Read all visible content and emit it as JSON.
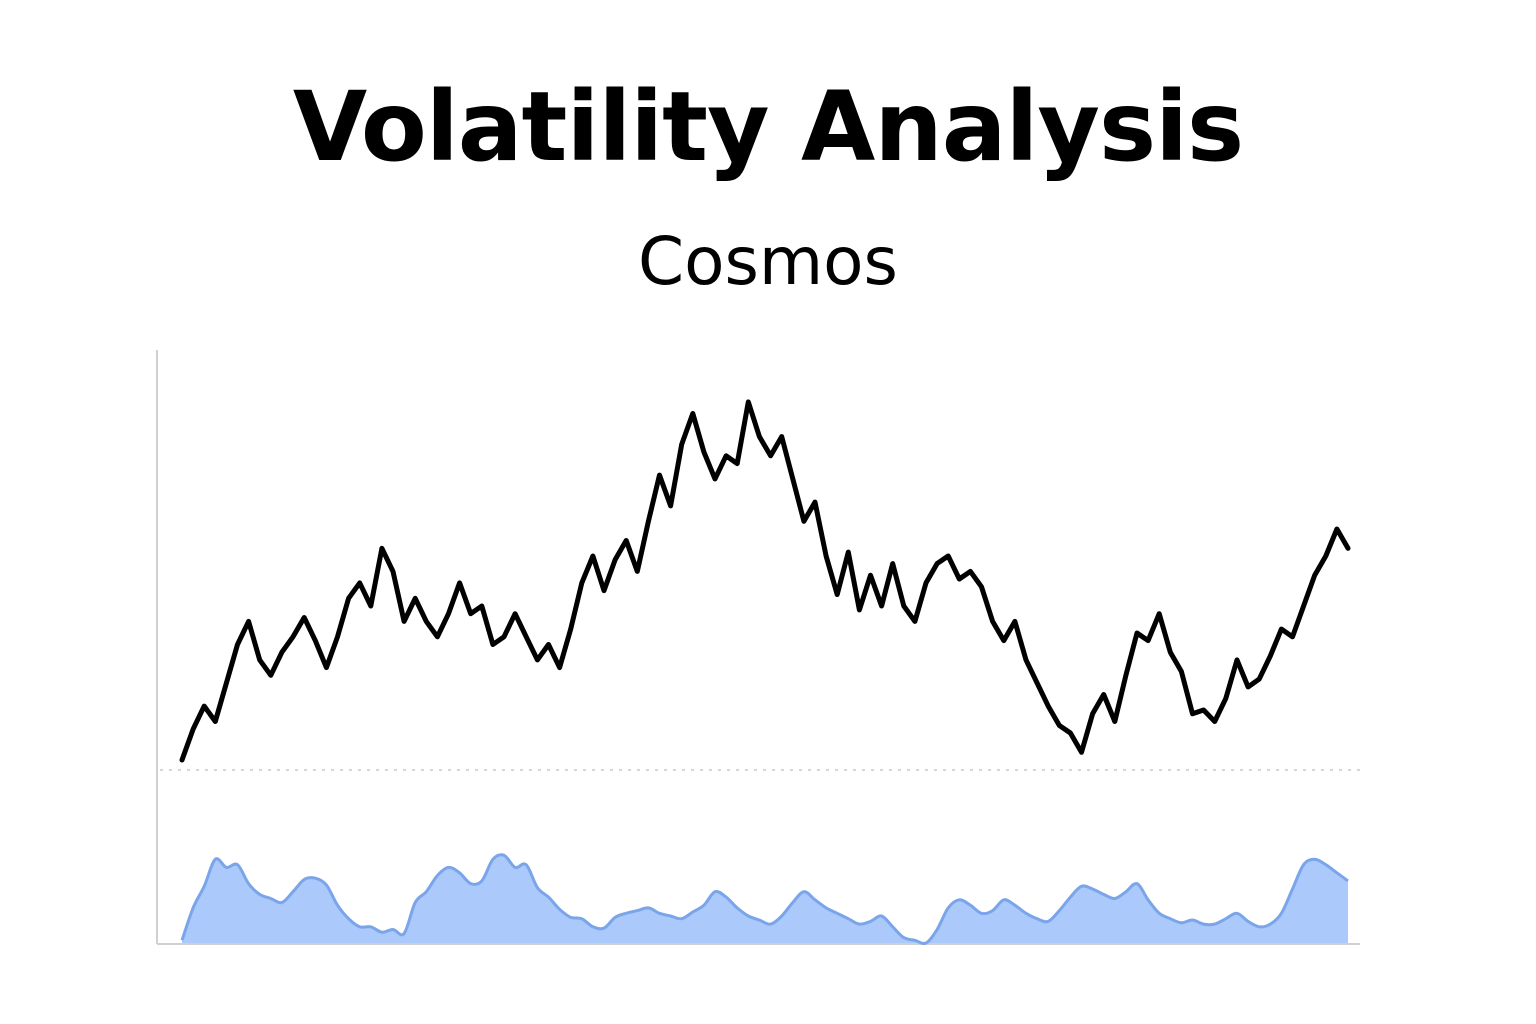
{
  "chart_data": {
    "type": "line",
    "title": "Volatility Analysis",
    "subtitle": "Cosmos",
    "xlabel": "",
    "ylabel": "",
    "grid": false,
    "legend": "none",
    "colors": {
      "price_line": "#000000",
      "volatility_fill": "#abc9fa",
      "volatility_stroke": "#7aa5ea",
      "axis": "#d0d0d0",
      "divider": "#d6d6d6"
    },
    "price_ylim": [
      0,
      100
    ],
    "volatility_ylim": [
      0,
      100
    ],
    "price_series": {
      "values": [
        0.0,
        8.0,
        14.0,
        10.0,
        20.0,
        30.0,
        36.0,
        26.0,
        22.0,
        28.0,
        32.0,
        37.0,
        31.0,
        24.0,
        32.0,
        42.0,
        46.0,
        40.0,
        55.0,
        49.0,
        36.0,
        42.0,
        36.0,
        32.0,
        38.0,
        46.0,
        38.0,
        40.0,
        30.0,
        32.0,
        38.0,
        32.0,
        26.0,
        30.0,
        24.0,
        34.0,
        46.0,
        53.0,
        44.0,
        52.0,
        57.0,
        49.0,
        62.0,
        74.0,
        66.0,
        82.0,
        90.0,
        80.0,
        73.0,
        79.0,
        77.0,
        93.0,
        84.0,
        79.0,
        84.0,
        73.0,
        62.0,
        67.0,
        53.0,
        43.0,
        54.0,
        39.0,
        48.0,
        40.0,
        51.0,
        40.0,
        36.0,
        46.0,
        51.0,
        53.0,
        47.0,
        49.0,
        45.0,
        36.0,
        31.0,
        36.0,
        26.0,
        20.0,
        14.0,
        9.0,
        7.0,
        2.0,
        12.0,
        17.0,
        10.0,
        22.0,
        33.0,
        31.0,
        38.0,
        28.0,
        23.0,
        12.0,
        13.0,
        10.0,
        16.0,
        26.0,
        19.0,
        21.0,
        27.0,
        34.0,
        32.0,
        40.0,
        48.0,
        53.0,
        60.0,
        55.0
      ]
    },
    "volatility_series": {
      "values": [
        2.0,
        26.0,
        42.0,
        62.0,
        56.0,
        58.0,
        44.0,
        36.0,
        33.0,
        30.0,
        38.0,
        47.0,
        48.0,
        43.0,
        28.0,
        18.0,
        12.0,
        12.0,
        8.0,
        10.0,
        7.0,
        30.0,
        38.0,
        50.0,
        56.0,
        52.0,
        44.0,
        46.0,
        62.0,
        65.0,
        56.0,
        58.0,
        41.0,
        34.0,
        25.0,
        19.0,
        18.0,
        12.0,
        11.0,
        19.0,
        22.0,
        24.0,
        26.0,
        22.0,
        20.0,
        18.0,
        23.0,
        28.0,
        38.0,
        34.0,
        26.0,
        20.0,
        17.0,
        14.0,
        20.0,
        30.0,
        38.0,
        32.0,
        26.0,
        22.0,
        18.0,
        14.0,
        16.0,
        20.0,
        12.0,
        4.0,
        2.0,
        0.0,
        10.0,
        26.0,
        32.0,
        28.0,
        22.0,
        24.0,
        32.0,
        28.0,
        22.0,
        18.0,
        16.0,
        24.0,
        34.0,
        42.0,
        40.0,
        36.0,
        33.0,
        38.0,
        44.0,
        32.0,
        22.0,
        18.0,
        15.0,
        17.0,
        14.0,
        14.0,
        18.0,
        22.0,
        16.0,
        12.0,
        14.0,
        22.0,
        40.0,
        58.0,
        62.0,
        58.0,
        52.0,
        46.0
      ]
    }
  }
}
